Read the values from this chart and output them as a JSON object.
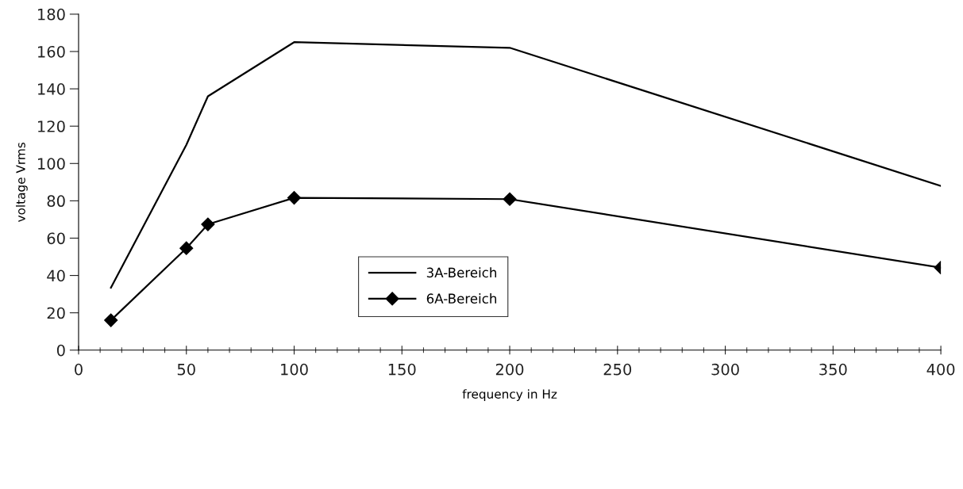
{
  "chart_data": {
    "type": "line",
    "xlabel": "frequency in Hz",
    "ylabel": "voltage Vrms",
    "x": [
      15,
      50,
      60,
      100,
      200,
      400
    ],
    "series": [
      {
        "name": "3A-Bereich",
        "color": "#000000",
        "marker": "none",
        "values": [
          33.4,
          110,
          136,
          165,
          162,
          88
        ]
      },
      {
        "name": "6A-Bereich",
        "color": "#000000",
        "marker": "diamond",
        "values": [
          16,
          54.6,
          67.4,
          81.6,
          80.9,
          44.2
        ]
      }
    ],
    "xlim": [
      0,
      400
    ],
    "xticks": [
      0,
      50,
      100,
      150,
      200,
      250,
      300,
      350,
      400
    ],
    "ylim": [
      0,
      180
    ],
    "yticks": [
      0,
      20,
      40,
      60,
      80,
      100,
      120,
      140,
      160,
      180
    ],
    "grid": false,
    "legend": "bottom",
    "line_style": "solid"
  }
}
